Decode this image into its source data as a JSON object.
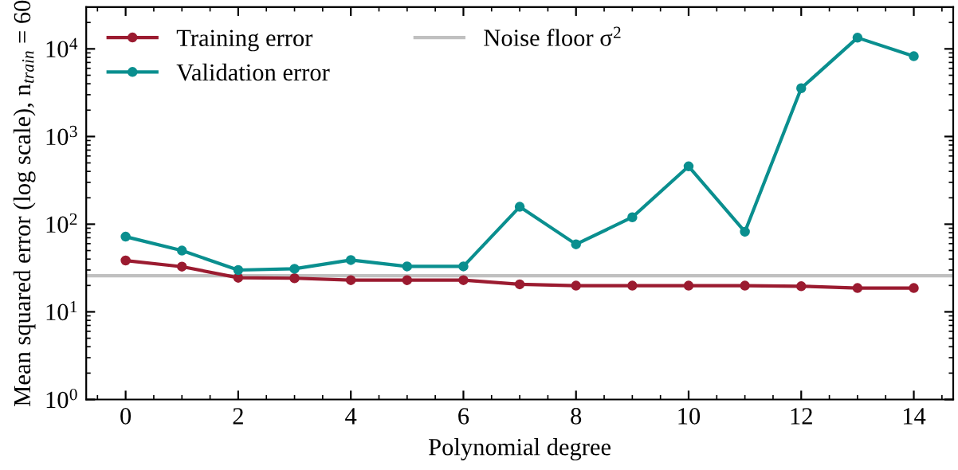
{
  "chart_data": {
    "type": "line",
    "xlabel": "Polynomial degree",
    "ylabel": "Mean squared error (log scale), n$_{train}$ = 60",
    "x": [
      0,
      1,
      2,
      3,
      4,
      5,
      6,
      7,
      8,
      9,
      10,
      11,
      12,
      13,
      14
    ],
    "series": [
      {
        "name": "Training error",
        "color": "#9b1b30",
        "values": [
          38.5,
          32.8,
          24.5,
          24.2,
          23,
          23,
          23,
          20.6,
          19.9,
          19.9,
          19.9,
          19.9,
          19.6,
          18.7,
          18.7
        ]
      },
      {
        "name": "Validation error",
        "color": "#0a8f8f",
        "values": [
          72,
          50,
          30,
          31,
          39,
          33,
          33,
          158,
          59,
          120,
          457,
          82,
          3560,
          13400,
          8240
        ]
      }
    ],
    "ref_lines": [
      {
        "axis": "y",
        "value": 25.8,
        "label": "Noise floor σ$^{2}$",
        "color": "#c0c0c0"
      }
    ],
    "log": "y",
    "xlim": [
      -0.7,
      14.7
    ],
    "ylim": [
      1,
      30000
    ],
    "xticks": [
      0,
      2,
      4,
      6,
      8,
      10,
      12,
      14
    ],
    "yticks": [
      {
        "value": 1,
        "label": "10$^{0}$"
      },
      {
        "value": 10,
        "label": "10$^{1}$"
      },
      {
        "value": 100,
        "label": "10$^{2}$"
      },
      {
        "value": 1000,
        "label": "10$^{3}$"
      },
      {
        "value": 10000,
        "label": "10$^{4}$"
      }
    ],
    "marker": "circle",
    "line_style": "solid",
    "grid": false,
    "legend": "top left"
  }
}
